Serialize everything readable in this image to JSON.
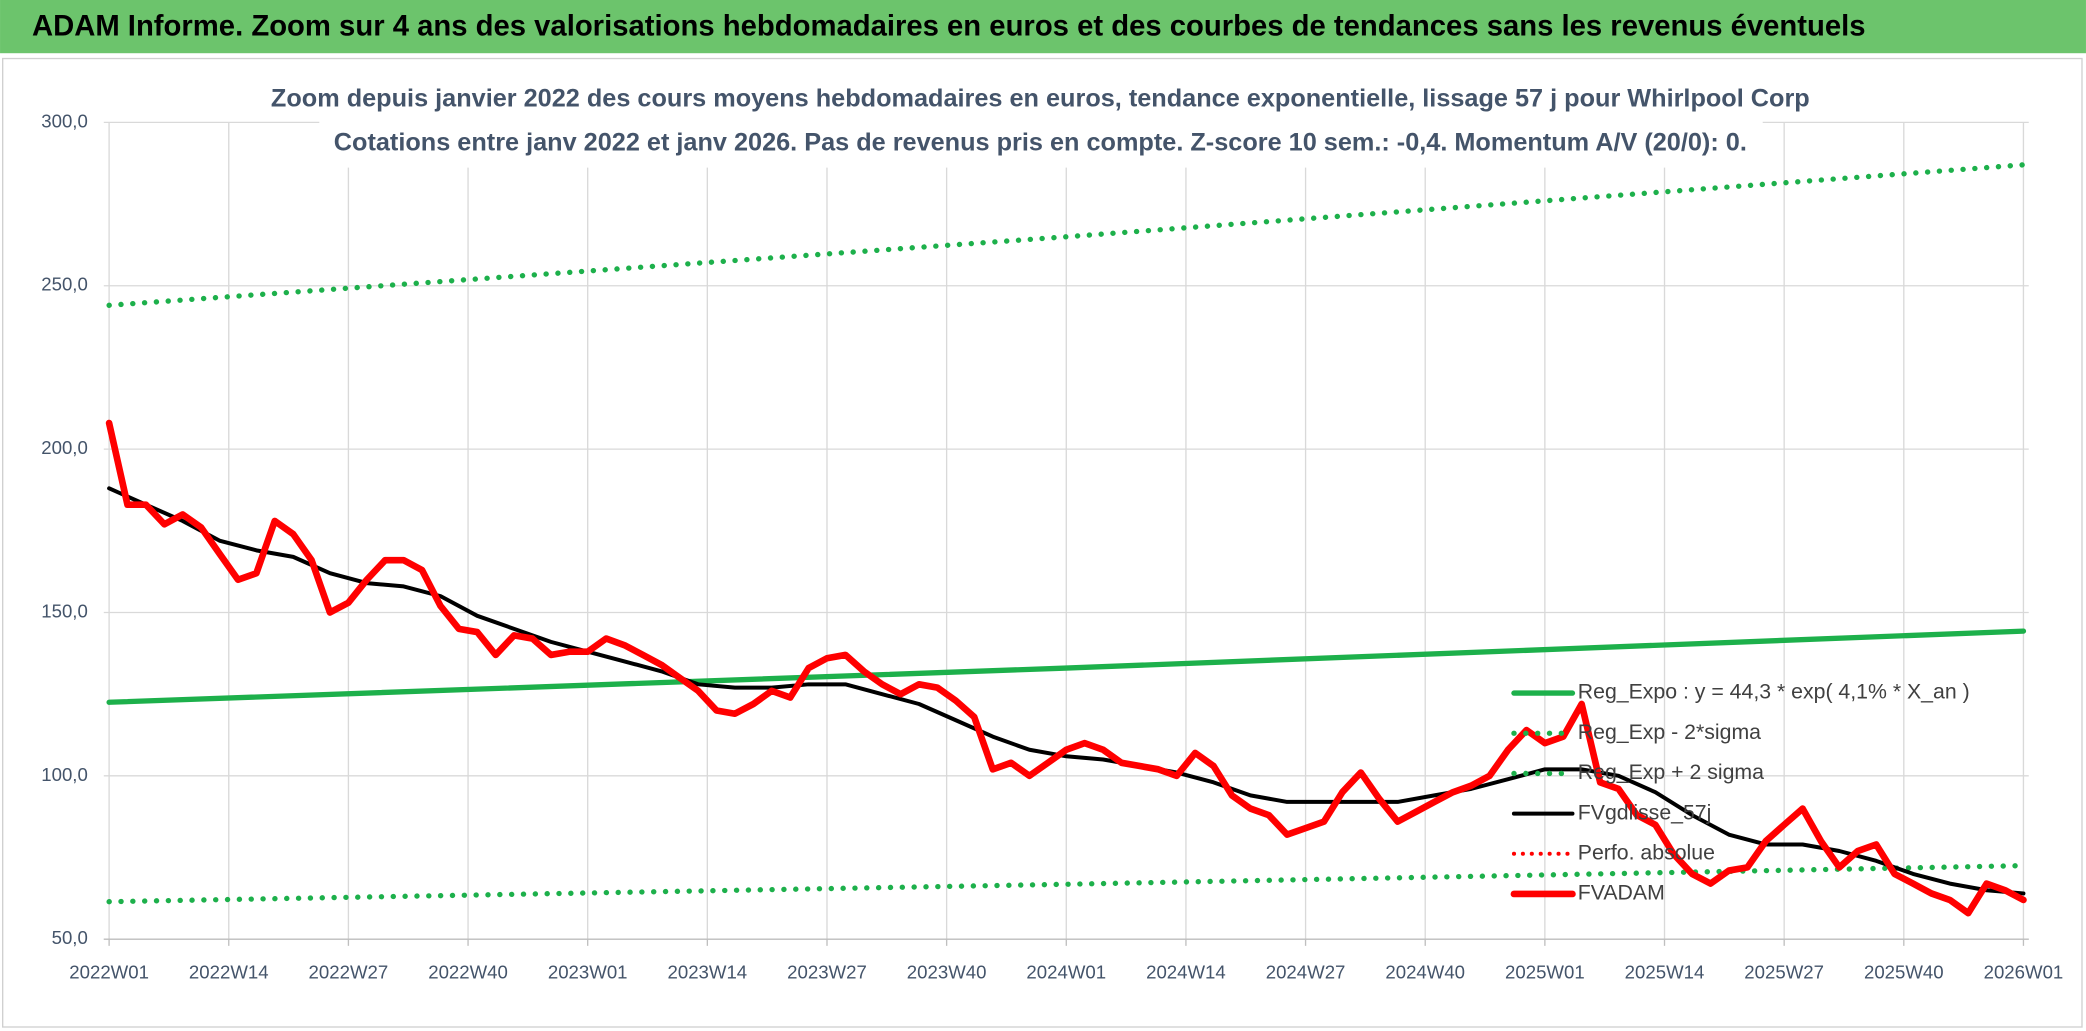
{
  "chart_data": {
    "type": "line",
    "header": "ADAM Informe. Zoom sur 4 ans des valorisations hebdomadaires en euros et des courbes de tendances sans les revenus éventuels",
    "title": "Zoom depuis janvier 2022 des cours moyens hebdomadaires en euros, tendance exponentielle, lissage 57 j pour Whirlpool Corp",
    "subtitle": "Cotations entre janv 2022 et janv 2026. Pas de revenus pris en compte. Z-score 10 sem.: -0,4. Momentum A/V (20/0): 0.",
    "xlim": [
      0,
      208
    ],
    "xticks": [
      {
        "value": 0,
        "label": "2022W01"
      },
      {
        "value": 13,
        "label": "2022W14"
      },
      {
        "value": 26,
        "label": "2022W27"
      },
      {
        "value": 39,
        "label": "2022W40"
      },
      {
        "value": 52,
        "label": "2023W01"
      },
      {
        "value": 65,
        "label": "2023W14"
      },
      {
        "value": 78,
        "label": "2023W27"
      },
      {
        "value": 91,
        "label": "2023W40"
      },
      {
        "value": 104,
        "label": "2024W01"
      },
      {
        "value": 117,
        "label": "2024W14"
      },
      {
        "value": 130,
        "label": "2024W27"
      },
      {
        "value": 143,
        "label": "2024W40"
      },
      {
        "value": 156,
        "label": "2025W01"
      },
      {
        "value": 169,
        "label": "2025W14"
      },
      {
        "value": 182,
        "label": "2025W27"
      },
      {
        "value": 195,
        "label": "2025W40"
      },
      {
        "value": 208,
        "label": "2026W01"
      }
    ],
    "ylim": [
      50,
      300
    ],
    "yticks": [
      {
        "value": 50,
        "label": "50,0"
      },
      {
        "value": 100,
        "label": "100,0"
      },
      {
        "value": 150,
        "label": "150,0"
      },
      {
        "value": 200,
        "label": "200,0"
      },
      {
        "value": 250,
        "label": "250,0"
      },
      {
        "value": 300,
        "label": "300,0"
      }
    ],
    "grid": true,
    "legend": "right",
    "series": [
      {
        "name": "Reg_Expo : y = 44,3 * exp( 4,1% *  X_an )",
        "color": "#1db04b",
        "style": "solid",
        "x": [
          0,
          104,
          208
        ],
        "values": [
          122.5,
          133,
          144.3
        ]
      },
      {
        "name": "Reg_Exp - 2*sigma",
        "color": "#1db04b",
        "style": "dotted",
        "x": [
          0,
          104,
          208
        ],
        "values": [
          61.5,
          66.8,
          72.5
        ]
      },
      {
        "name": "Reg_Exp + 2 sigma",
        "color": "#1db04b",
        "style": "dotted",
        "x": [
          0,
          104,
          208
        ],
        "values": [
          244,
          265,
          287
        ]
      },
      {
        "name": "FVgdlisse_57j",
        "color": "#000000",
        "style": "solid",
        "x": [
          0,
          4,
          8,
          12,
          16,
          20,
          24,
          28,
          32,
          36,
          40,
          44,
          48,
          52,
          56,
          60,
          64,
          68,
          72,
          76,
          80,
          84,
          88,
          92,
          96,
          100,
          104,
          108,
          112,
          116,
          120,
          124,
          128,
          132,
          136,
          140,
          144,
          148,
          152,
          156,
          160,
          164,
          168,
          172,
          176,
          180,
          184,
          188,
          192,
          196,
          200,
          204,
          208
        ],
        "values": [
          188,
          183,
          178,
          172,
          169,
          167,
          162,
          159,
          158,
          155,
          149,
          145,
          141,
          138,
          135,
          132,
          128,
          127,
          127,
          128,
          128,
          125,
          122,
          117,
          112,
          108,
          106,
          105,
          103,
          101,
          98,
          94,
          92,
          92,
          92,
          92,
          94,
          96,
          99,
          102,
          102,
          100,
          95,
          88,
          82,
          79,
          79,
          77,
          74,
          70,
          67,
          65,
          64
        ]
      },
      {
        "name": "Perfo. absolue",
        "color": "#ff0000",
        "style": "dotted",
        "x": [],
        "values": []
      },
      {
        "name": "FVADAM",
        "color": "#ff0000",
        "style": "solid",
        "x": [
          0,
          2,
          4,
          6,
          8,
          10,
          12,
          14,
          16,
          18,
          20,
          22,
          24,
          26,
          28,
          30,
          32,
          34,
          36,
          38,
          40,
          42,
          44,
          46,
          48,
          50,
          52,
          54,
          56,
          58,
          60,
          62,
          64,
          66,
          68,
          70,
          72,
          74,
          76,
          78,
          80,
          82,
          84,
          86,
          88,
          90,
          92,
          94,
          96,
          98,
          100,
          102,
          104,
          106,
          108,
          110,
          112,
          114,
          116,
          118,
          120,
          122,
          124,
          126,
          128,
          130,
          132,
          134,
          136,
          138,
          140,
          142,
          144,
          146,
          148,
          150,
          152,
          154,
          156,
          158,
          160,
          162,
          164,
          166,
          168,
          170,
          172,
          174,
          176,
          178,
          180,
          182,
          184,
          186,
          188,
          190,
          192,
          194,
          196,
          198,
          200,
          202,
          204,
          206,
          208
        ],
        "values": [
          208,
          183,
          183,
          177,
          180,
          176,
          168,
          160,
          162,
          178,
          174,
          166,
          150,
          153,
          160,
          166,
          166,
          163,
          152,
          145,
          144,
          137,
          143,
          142,
          137,
          138,
          138,
          142,
          140,
          137,
          134,
          130,
          126,
          120,
          119,
          122,
          126,
          124,
          133,
          136,
          137,
          132,
          128,
          125,
          128,
          127,
          123,
          118,
          102,
          104,
          100,
          104,
          108,
          110,
          108,
          104,
          103,
          102,
          100,
          107,
          103,
          94,
          90,
          88,
          82,
          84,
          86,
          95,
          101,
          93,
          86,
          89,
          92,
          95,
          97,
          100,
          108,
          114,
          110,
          112,
          122,
          98,
          96,
          88,
          85,
          76,
          70,
          67,
          71,
          72,
          80,
          85,
          90,
          80,
          72,
          77,
          79,
          70,
          67,
          64,
          62,
          58,
          67,
          65,
          62
        ]
      }
    ]
  }
}
